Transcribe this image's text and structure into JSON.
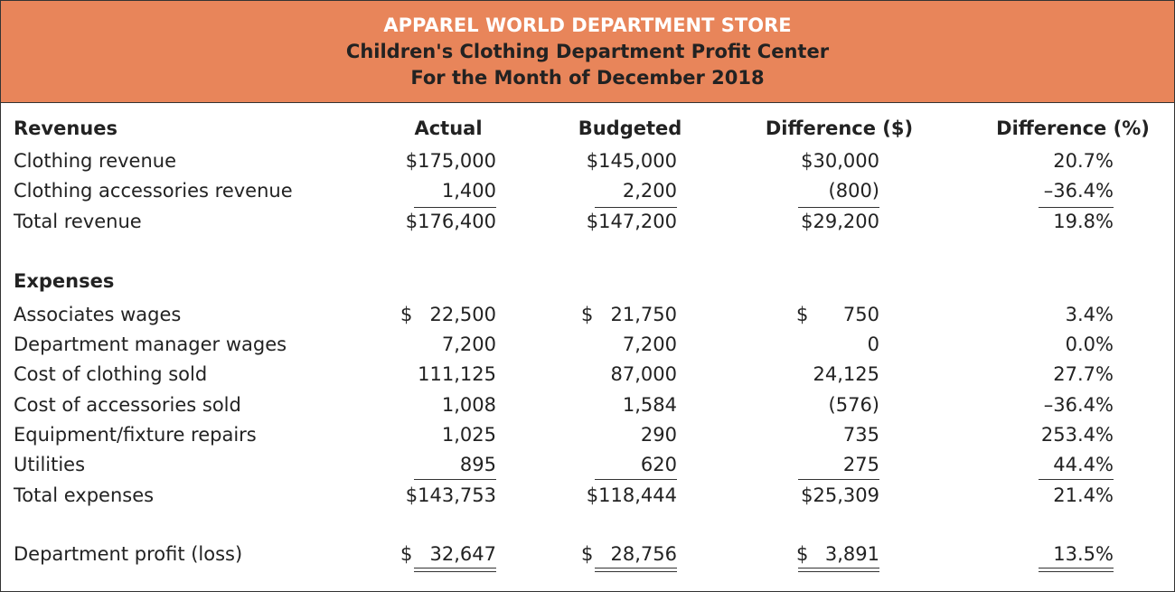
{
  "header": {
    "title": "APPAREL WORLD DEPARTMENT STORE",
    "subtitle": "Children's Clothing Department Profit Center",
    "period": "For the Month of December 2018"
  },
  "header_color": "#E8855A",
  "columns": [
    "Actual",
    "Budgeted",
    "Difference ($)",
    "Difference (%)"
  ],
  "revenues": {
    "heading": "Revenues",
    "rows": [
      {
        "label": "Clothing revenue",
        "values": [
          "$175,000",
          "$145,000",
          "$30,000",
          "20.7%"
        ]
      },
      {
        "label": "Clothing accessories revenue",
        "values": [
          "1,400",
          "2,200",
          "(800)",
          "–36.4%"
        ]
      },
      {
        "label": "Total revenue",
        "values": [
          "$176,400",
          "$147,200",
          "$29,200",
          "19.8%"
        ]
      }
    ]
  },
  "expenses": {
    "heading": "Expenses",
    "rows": [
      {
        "label": "Associates wages",
        "dollar": "$",
        "values": [
          "22,500",
          "21,750",
          "750",
          "3.4%"
        ]
      },
      {
        "label": "Department manager wages",
        "values": [
          "7,200",
          "7,200",
          "0",
          "0.0%"
        ]
      },
      {
        "label": "Cost of clothing sold",
        "values": [
          "111,125",
          "87,000",
          "24,125",
          "27.7%"
        ]
      },
      {
        "label": "Cost of accessories sold",
        "values": [
          "1,008",
          "1,584",
          "(576)",
          "–36.4%"
        ]
      },
      {
        "label": "Equipment/fixture repairs",
        "values": [
          "1,025",
          "290",
          "735",
          "253.4%"
        ]
      },
      {
        "label": "Utilities",
        "values": [
          "895",
          "620",
          "275",
          "44.4%"
        ]
      },
      {
        "label": "Total expenses",
        "values": [
          "$143,753",
          "$118,444",
          "$25,309",
          "21.4%"
        ]
      }
    ]
  },
  "profit": {
    "label": "Department profit (loss)",
    "dollar": "$",
    "values": [
      "32,647",
      "28,756",
      "3,891",
      "13.5%"
    ]
  }
}
